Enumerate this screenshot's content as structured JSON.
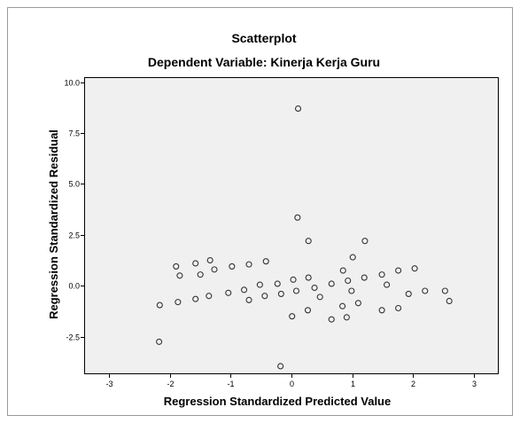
{
  "chart_data": {
    "type": "scatter",
    "title": "Scatterplot",
    "subtitle": "Dependent Variable: Kinerja Kerja Guru",
    "xlabel": "Regression Standardized Predicted Value",
    "ylabel": "Regression Standardized Residual",
    "xlim": [
      -3.4,
      3.4
    ],
    "ylim": [
      -4.3,
      10.2
    ],
    "xticks": [
      -3,
      -2,
      -1,
      0,
      1,
      2,
      3
    ],
    "xtick_labels": [
      "-3",
      "-2",
      "-1",
      "0",
      "1",
      "2",
      "3"
    ],
    "yticks": [
      10,
      7.5,
      5,
      2.5,
      0,
      -2.5
    ],
    "ytick_labels": [
      "10.0",
      "7.5",
      "5.0",
      "2.5",
      "0.0",
      "-2.5"
    ],
    "grid": false,
    "background": "#f0f0f0",
    "marker_color": "#333333",
    "series": [
      {
        "points": [
          {
            "x": -2.18,
            "y": -2.75
          },
          {
            "x": -2.17,
            "y": -0.95
          },
          {
            "x": -1.9,
            "y": 0.95
          },
          {
            "x": -1.84,
            "y": 0.5
          },
          {
            "x": -1.87,
            "y": -0.8
          },
          {
            "x": -1.58,
            "y": 1.1
          },
          {
            "x": -1.58,
            "y": -0.65
          },
          {
            "x": -1.5,
            "y": 0.55
          },
          {
            "x": -1.34,
            "y": 1.25
          },
          {
            "x": -1.27,
            "y": 0.8
          },
          {
            "x": -1.36,
            "y": -0.5
          },
          {
            "x": -1.04,
            "y": -0.35
          },
          {
            "x": -0.98,
            "y": 0.95
          },
          {
            "x": -0.78,
            "y": -0.2
          },
          {
            "x": -0.7,
            "y": 1.05
          },
          {
            "x": -0.7,
            "y": -0.7
          },
          {
            "x": -0.52,
            "y": 0.05
          },
          {
            "x": -0.44,
            "y": -0.5
          },
          {
            "x": -0.42,
            "y": 1.2
          },
          {
            "x": -0.23,
            "y": 0.1
          },
          {
            "x": -0.17,
            "y": -0.4
          },
          {
            "x": -0.18,
            "y": -3.95
          },
          {
            "x": 0.03,
            "y": 0.3
          },
          {
            "x": 0.01,
            "y": -1.5
          },
          {
            "x": 0.08,
            "y": -0.25
          },
          {
            "x": 0.11,
            "y": 8.7
          },
          {
            "x": 0.1,
            "y": 3.35
          },
          {
            "x": 0.28,
            "y": 2.2
          },
          {
            "x": 0.28,
            "y": 0.4
          },
          {
            "x": 0.27,
            "y": -1.2
          },
          {
            "x": 0.38,
            "y": -0.1
          },
          {
            "x": 0.47,
            "y": -0.55
          },
          {
            "x": 0.66,
            "y": 0.1
          },
          {
            "x": 0.66,
            "y": -1.65
          },
          {
            "x": 0.85,
            "y": 0.75
          },
          {
            "x": 0.84,
            "y": -1.0
          },
          {
            "x": 0.91,
            "y": -1.55
          },
          {
            "x": 0.93,
            "y": 0.25
          },
          {
            "x": 1.01,
            "y": 1.4
          },
          {
            "x": 0.99,
            "y": -0.25
          },
          {
            "x": 1.1,
            "y": -0.85
          },
          {
            "x": 1.21,
            "y": 2.2
          },
          {
            "x": 1.2,
            "y": 0.4
          },
          {
            "x": 1.49,
            "y": 0.55
          },
          {
            "x": 1.49,
            "y": -1.2
          },
          {
            "x": 1.57,
            "y": 0.05
          },
          {
            "x": 1.76,
            "y": 0.75
          },
          {
            "x": 1.76,
            "y": -1.1
          },
          {
            "x": 1.93,
            "y": -0.4
          },
          {
            "x": 2.03,
            "y": 0.85
          },
          {
            "x": 2.2,
            "y": -0.25
          },
          {
            "x": 2.53,
            "y": -0.25
          },
          {
            "x": 2.6,
            "y": -0.75
          }
        ]
      }
    ]
  }
}
